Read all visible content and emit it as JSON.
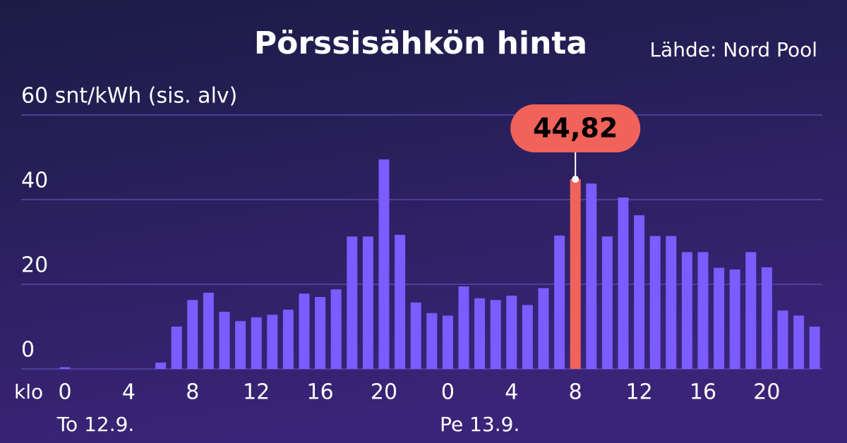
{
  "chart_data": {
    "type": "bar",
    "title": "Pörssisähkön hinta",
    "source": "Lähde: Nord Pool",
    "x_prefix": "klo",
    "day_labels": [
      {
        "index": 0,
        "label": "To 12.9."
      },
      {
        "index": 24,
        "label": "Pe 13.9."
      }
    ],
    "categories": [
      "0",
      null,
      null,
      null,
      "4",
      null,
      null,
      null,
      "8",
      null,
      null,
      null,
      "12",
      null,
      null,
      null,
      "16",
      null,
      null,
      null,
      "20",
      null,
      null,
      null,
      "0",
      null,
      null,
      null,
      "4",
      null,
      null,
      null,
      "8",
      null,
      null,
      null,
      "12",
      null,
      null,
      null,
      "16",
      null,
      null,
      null,
      "20",
      null,
      null,
      null
    ],
    "values": [
      0.4,
      0,
      0,
      0,
      0,
      0,
      1.5,
      10,
      16.3,
      18,
      13.5,
      11.3,
      12.2,
      12.8,
      14,
      17.8,
      17,
      18.8,
      31.3,
      31.3,
      49.5,
      31.7,
      15.7,
      13.2,
      12.6,
      19.5,
      16.7,
      16.3,
      17.3,
      15.1,
      19.1,
      31.5,
      44.82,
      43.8,
      31.3,
      40.5,
      36.3,
      31.4,
      31.4,
      27.6,
      27.6,
      23.9,
      23.5,
      27.6,
      24,
      13.8,
      12.6,
      10
    ],
    "color": "#7a5cff",
    "highlight": {
      "index": 32,
      "color": "#f0625a",
      "label": "44,82"
    },
    "ylim": [
      0,
      60
    ],
    "yticks": [
      0,
      20,
      40,
      {
        "value": 60,
        "label": "60 snt/kWh (sis. alv)"
      }
    ],
    "grid": true
  }
}
